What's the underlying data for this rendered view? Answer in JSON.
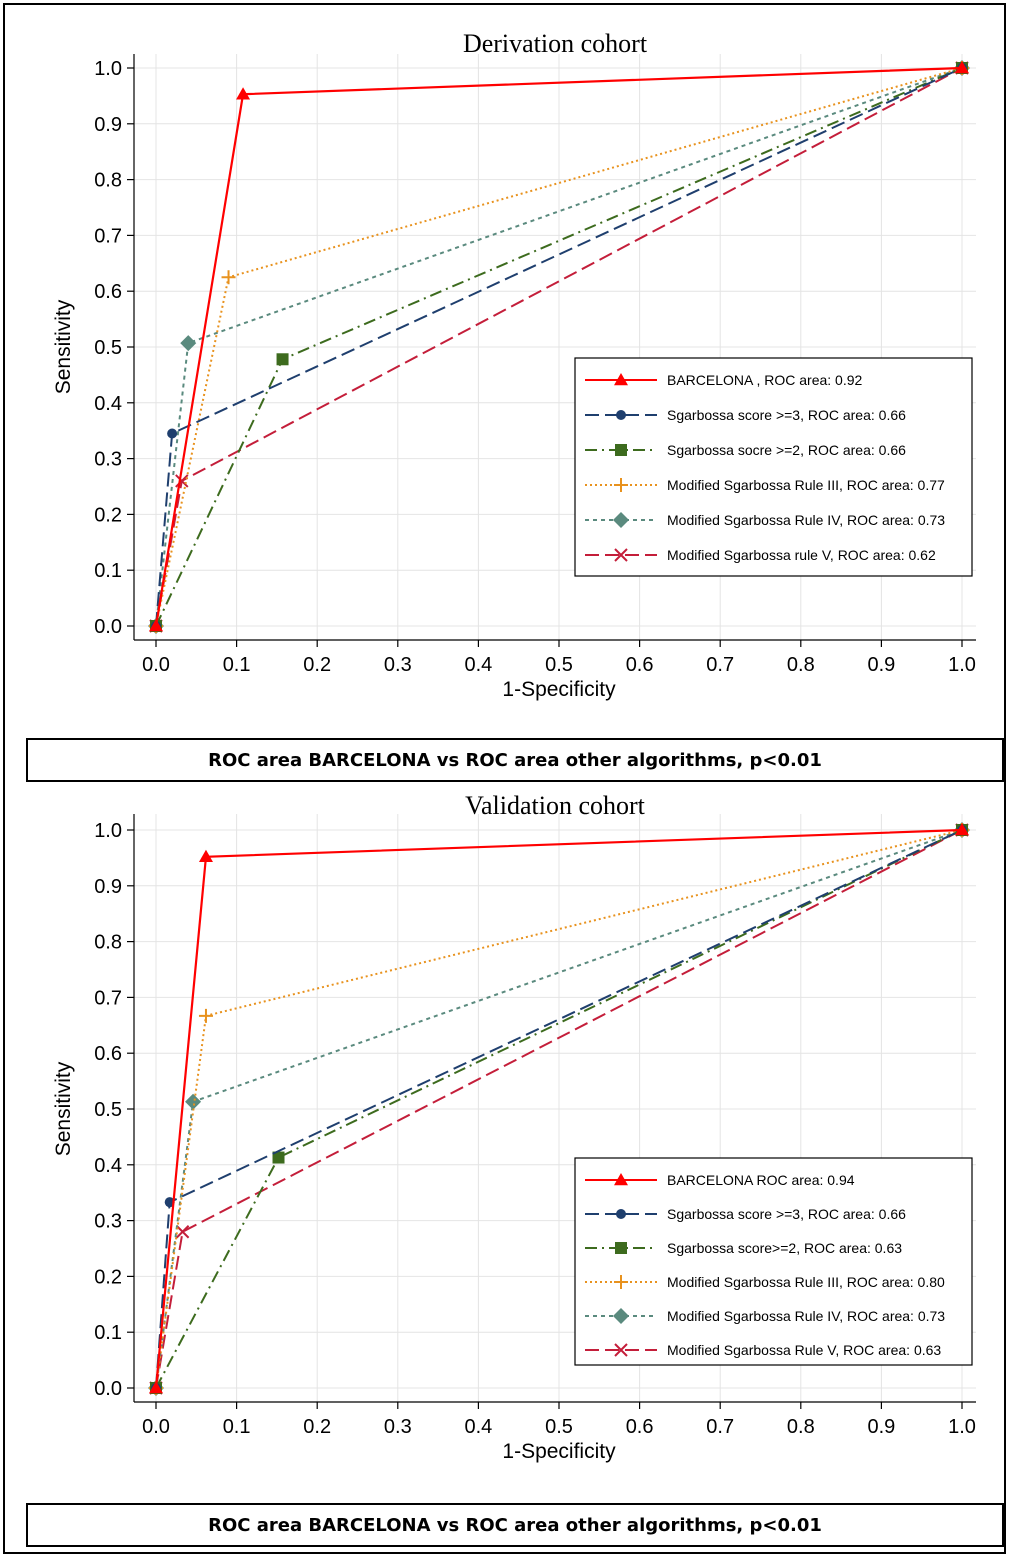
{
  "chart_data": [
    {
      "type": "line",
      "title": "Derivation cohort",
      "xlabel": "1-Specificity",
      "ylabel": "Sensitivity",
      "xlim": [
        0,
        1
      ],
      "ylim": [
        0,
        1
      ],
      "xticks": [
        "0.0",
        "0.1",
        "0.2",
        "0.3",
        "0.4",
        "0.5",
        "0.6",
        "0.7",
        "0.8",
        "0.9",
        "1.0"
      ],
      "yticks": [
        "0.0",
        "0.1",
        "0.2",
        "0.3",
        "0.4",
        "0.5",
        "0.6",
        "0.7",
        "0.8",
        "0.9",
        "1.0"
      ],
      "grid": true,
      "legend_position": "center-right",
      "series": [
        {
          "name": "BARCELONA",
          "legend": "BARCELONA     , ROC area: 0.92",
          "color": "#ff0000",
          "dash": "solid",
          "marker": "triangle",
          "points": [
            [
              0,
              0
            ],
            [
              0.108,
              0.953
            ],
            [
              1,
              1
            ]
          ]
        },
        {
          "name": "Sgarbossa score >=3",
          "legend": "Sgarbossa score >=3, ROC area: 0.66",
          "color": "#1f3f6e",
          "dash": "dash",
          "marker": "circle",
          "points": [
            [
              0,
              0
            ],
            [
              0.02,
              0.345
            ],
            [
              1,
              1
            ]
          ]
        },
        {
          "name": "Sgarbossa socre >=2",
          "legend": "Sgarbossa socre >=2, ROC area: 0.66",
          "color": "#3d6b1e",
          "dash": "dashdot",
          "marker": "square",
          "points": [
            [
              0,
              0
            ],
            [
              0.157,
              0.478
            ],
            [
              1,
              1
            ]
          ]
        },
        {
          "name": "Modified Sgarbossa Rule III",
          "legend": "Modified Sgarbossa Rule III, ROC area: 0.77",
          "color": "#e8921e",
          "dash": "dot",
          "marker": "plus",
          "points": [
            [
              0,
              0
            ],
            [
              0.09,
              0.625
            ],
            [
              1,
              1
            ]
          ]
        },
        {
          "name": "Modified Sgarbossa Rule IV",
          "legend": "Modified Sgarbossa Rule IV, ROC area: 0.73",
          "color": "#5a8a7e",
          "dash": "shortdash",
          "marker": "diamond",
          "points": [
            [
              0,
              0
            ],
            [
              0.04,
              0.507
            ],
            [
              1,
              1
            ]
          ]
        },
        {
          "name": "Modified Sgarbossa rule V",
          "legend": "Modified Sgarbossa rule V, ROC area: 0.62",
          "color": "#c41e3a",
          "dash": "dash",
          "marker": "x",
          "points": [
            [
              0,
              0
            ],
            [
              0.032,
              0.26
            ],
            [
              1,
              1
            ]
          ]
        }
      ]
    },
    {
      "type": "line",
      "title": "Validation cohort",
      "xlabel": "1-Specificity",
      "ylabel": "Sensitivity",
      "xlim": [
        0,
        1
      ],
      "ylim": [
        0,
        1
      ],
      "xticks": [
        "0.0",
        "0.1",
        "0.2",
        "0.3",
        "0.4",
        "0.5",
        "0.6",
        "0.7",
        "0.8",
        "0.9",
        "1.0"
      ],
      "yticks": [
        "0.0",
        "0.1",
        "0.2",
        "0.3",
        "0.4",
        "0.5",
        "0.6",
        "0.7",
        "0.8",
        "0.9",
        "1.0"
      ],
      "grid": true,
      "legend_position": "bottom-right",
      "series": [
        {
          "name": "BARCELONA",
          "legend": "BARCELONA  ROC area: 0.94",
          "color": "#ff0000",
          "dash": "solid",
          "marker": "triangle",
          "points": [
            [
              0,
              0
            ],
            [
              0.062,
              0.952
            ],
            [
              1,
              1
            ]
          ]
        },
        {
          "name": "Sgarbossa score >=3",
          "legend": "Sgarbossa score >=3, ROC area: 0.66",
          "color": "#1f3f6e",
          "dash": "dash",
          "marker": "circle",
          "points": [
            [
              0,
              0
            ],
            [
              0.017,
              0.333
            ],
            [
              1,
              1
            ]
          ]
        },
        {
          "name": "Sgarbossa score>=2",
          "legend": "Sgarbossa score>=2, ROC area: 0.63",
          "color": "#3d6b1e",
          "dash": "dashdot",
          "marker": "square",
          "points": [
            [
              0,
              0
            ],
            [
              0.152,
              0.413
            ],
            [
              1,
              1
            ]
          ]
        },
        {
          "name": "Modified Sgarbossa Rule III",
          "legend": "Modified Sgarbossa Rule III, ROC area: 0.80",
          "color": "#e8921e",
          "dash": "dot",
          "marker": "plus",
          "points": [
            [
              0,
              0
            ],
            [
              0.062,
              0.667
            ],
            [
              1,
              1
            ]
          ]
        },
        {
          "name": "Modified Sgarbossa Rule IV",
          "legend": "Modified Sgarbossa Rule IV, ROC area: 0.73",
          "color": "#5a8a7e",
          "dash": "shortdash",
          "marker": "diamond",
          "points": [
            [
              0,
              0
            ],
            [
              0.046,
              0.513
            ],
            [
              1,
              1
            ]
          ]
        },
        {
          "name": "Modified Sgarbossa Rule V",
          "legend": "Modified Sgarbossa Rule V, ROC area: 0.63",
          "color": "#c41e3a",
          "dash": "dash",
          "marker": "x",
          "points": [
            [
              0,
              0
            ],
            [
              0.033,
              0.28
            ],
            [
              1,
              1
            ]
          ]
        }
      ]
    }
  ],
  "captions": [
    "ROC area BARCELONA vs ROC area other algorithms, p<0.01",
    "ROC area BARCELONA vs ROC area other algorithms, p<0.01"
  ]
}
